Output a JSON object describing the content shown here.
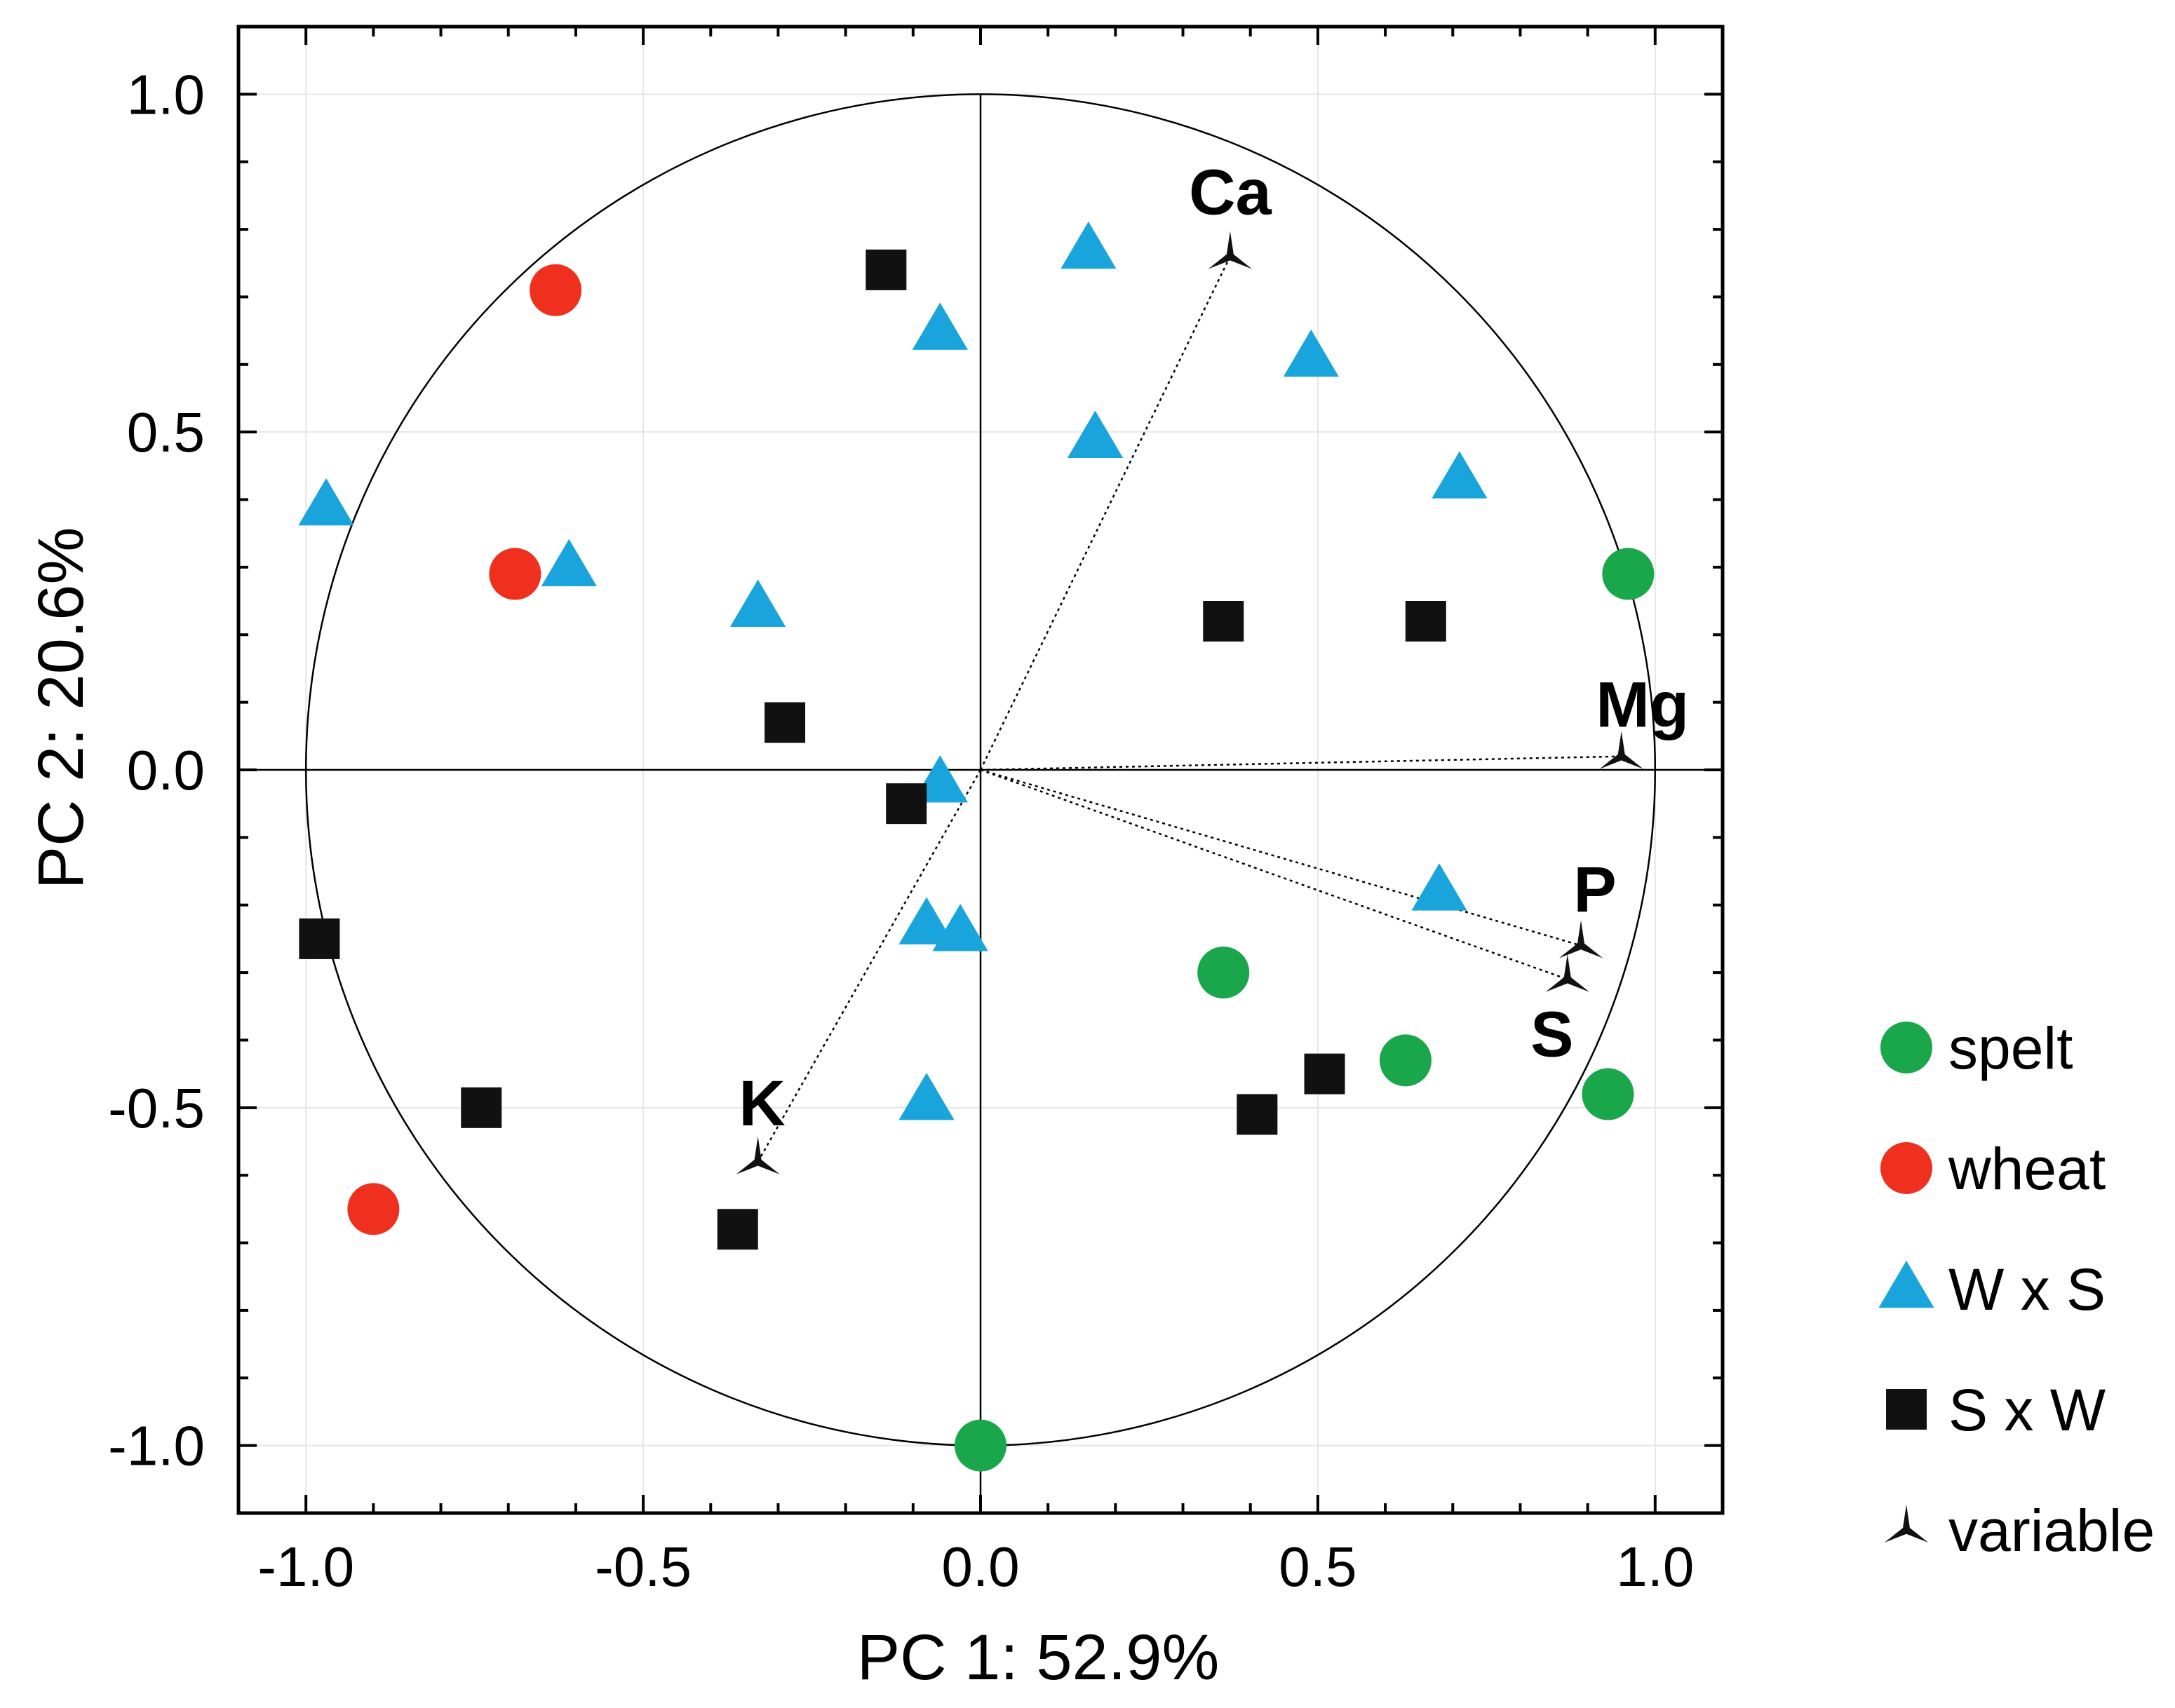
{
  "chart_data": {
    "type": "scatter",
    "title": "",
    "xlabel": "PC 1: 52.9%",
    "ylabel": "PC 2: 20.6%",
    "xlim": [
      -1.1,
      1.1
    ],
    "ylim": [
      -1.1,
      1.1
    ],
    "xticks": [
      -1.0,
      -0.5,
      0.0,
      0.5,
      1.0
    ],
    "xtick_labels": [
      "-1.0",
      "-0.5",
      "0.0",
      "0.5",
      "1.0"
    ],
    "yticks": [
      1.0,
      0.5,
      0.0,
      -0.5,
      -1.0
    ],
    "ytick_labels": [
      "1.0",
      "0.5",
      "0.0",
      "-0.5",
      "-1.0"
    ],
    "grid": true,
    "unit_circle": true,
    "legend_position": "right",
    "series": [
      {
        "name": "spelt",
        "marker": "circle",
        "color": "#1aa64a",
        "points": [
          [
            0.96,
            0.29
          ],
          [
            0.36,
            -0.3
          ],
          [
            0.63,
            -0.43
          ],
          [
            0.93,
            -0.48
          ],
          [
            0.0,
            -1.0
          ]
        ]
      },
      {
        "name": "wheat",
        "marker": "circle",
        "color": "#f0301e",
        "points": [
          [
            -0.63,
            0.71
          ],
          [
            -0.69,
            0.29
          ],
          [
            -0.9,
            -0.65
          ]
        ]
      },
      {
        "name": "W x S",
        "marker": "triangle",
        "color": "#19a5dc",
        "points": [
          [
            0.16,
            0.77
          ],
          [
            -0.06,
            0.65
          ],
          [
            0.49,
            0.61
          ],
          [
            0.17,
            0.49
          ],
          [
            0.71,
            0.43
          ],
          [
            -0.97,
            0.39
          ],
          [
            -0.61,
            0.3
          ],
          [
            -0.33,
            0.24
          ],
          [
            -0.06,
            -0.02
          ],
          [
            0.68,
            -0.18
          ],
          [
            -0.08,
            -0.23
          ],
          [
            -0.03,
            -0.24
          ],
          [
            -0.08,
            -0.49
          ]
        ]
      },
      {
        "name": "S x W",
        "marker": "square",
        "color": "#111111",
        "points": [
          [
            -0.14,
            0.74
          ],
          [
            0.36,
            0.22
          ],
          [
            0.66,
            0.22
          ],
          [
            -0.29,
            0.07
          ],
          [
            -0.11,
            -0.05
          ],
          [
            -0.98,
            -0.25
          ],
          [
            -0.74,
            -0.5
          ],
          [
            0.51,
            -0.45
          ],
          [
            0.41,
            -0.51
          ],
          [
            -0.36,
            -0.68
          ]
        ]
      }
    ],
    "variables": {
      "name": "variable",
      "marker": "tri-star",
      "color": "#111111",
      "items": [
        {
          "name": "Ca",
          "x": 0.37,
          "y": 0.76
        },
        {
          "name": "Mg",
          "x": 0.95,
          "y": 0.02
        },
        {
          "name": "P",
          "x": 0.89,
          "y": -0.26
        },
        {
          "name": "S",
          "x": 0.87,
          "y": -0.31
        },
        {
          "name": "K",
          "x": -0.33,
          "y": -0.58
        }
      ]
    },
    "legend": [
      {
        "label": "spelt",
        "marker": "circle",
        "color": "#1aa64a"
      },
      {
        "label": "wheat",
        "marker": "circle",
        "color": "#f0301e"
      },
      {
        "label": "W x S",
        "marker": "triangle",
        "color": "#19a5dc"
      },
      {
        "label": "S x W",
        "marker": "square",
        "color": "#111111"
      },
      {
        "label": "variable",
        "marker": "tri-star",
        "color": "#111111"
      }
    ]
  }
}
